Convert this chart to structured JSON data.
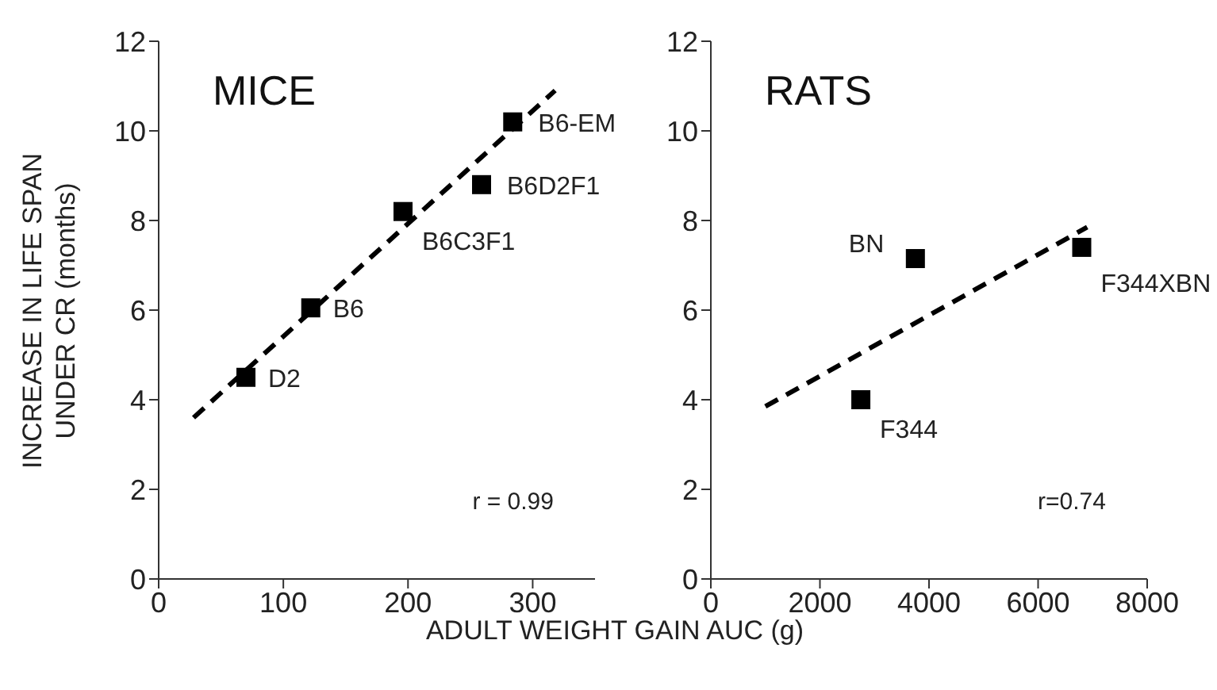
{
  "chart_data": [
    {
      "type": "scatter",
      "title": "MICE",
      "ylabel": "INCREASE IN LIFE SPAN UNDER CR (months)",
      "xlabel": "ADULT WEIGHT GAIN AUC (g)",
      "xlim": [
        0,
        350
      ],
      "xticks": [
        0,
        100,
        200,
        300
      ],
      "ylim": [
        0,
        12
      ],
      "yticks": [
        0,
        2,
        4,
        6,
        8,
        10,
        12
      ],
      "marker": "square",
      "series": [
        {
          "color": "#000000",
          "x": [
            70,
            122,
            196,
            259,
            284
          ],
          "values": [
            4.5,
            6.05,
            8.2,
            8.8,
            10.2
          ]
        },
        {
          "type": "line",
          "color": "#000000",
          "line_style": "dashed",
          "marker": "none",
          "x": [
            28,
            318
          ],
          "values": [
            3.6,
            10.9
          ]
        }
      ],
      "annotations": [
        {
          "text": "D2",
          "x": 70,
          "y": 4.5
        },
        {
          "text": "B6",
          "x": 122,
          "y": 6.05
        },
        {
          "text": "B6C3F1",
          "x": 196,
          "y": 8.2
        },
        {
          "text": "B6D2F1",
          "x": 259,
          "y": 8.8
        },
        {
          "text": "B6-EM",
          "x": 284,
          "y": 10.2
        },
        "r = 0.99"
      ]
    },
    {
      "type": "scatter",
      "title": "RATS",
      "xlim": [
        0,
        8000
      ],
      "xticks": [
        0,
        2000,
        4000,
        6000,
        8000
      ],
      "ylim": [
        0,
        12
      ],
      "yticks": [
        0,
        2,
        4,
        6,
        8,
        10,
        12
      ],
      "marker": "square",
      "series": [
        {
          "color": "#000000",
          "x": [
            2750,
            3750,
            6800
          ],
          "values": [
            4.0,
            7.15,
            7.4
          ]
        },
        {
          "type": "line",
          "color": "#000000",
          "line_style": "dashed",
          "marker": "none",
          "x": [
            1000,
            6900
          ],
          "values": [
            3.85,
            7.85
          ]
        }
      ],
      "annotations": [
        {
          "text": "F344",
          "x": 2750,
          "y": 4.0
        },
        {
          "text": "BN",
          "x": 3750,
          "y": 7.15
        },
        {
          "text": "F344XBN",
          "x": 6800,
          "y": 7.4
        },
        "r=0.74"
      ]
    }
  ]
}
